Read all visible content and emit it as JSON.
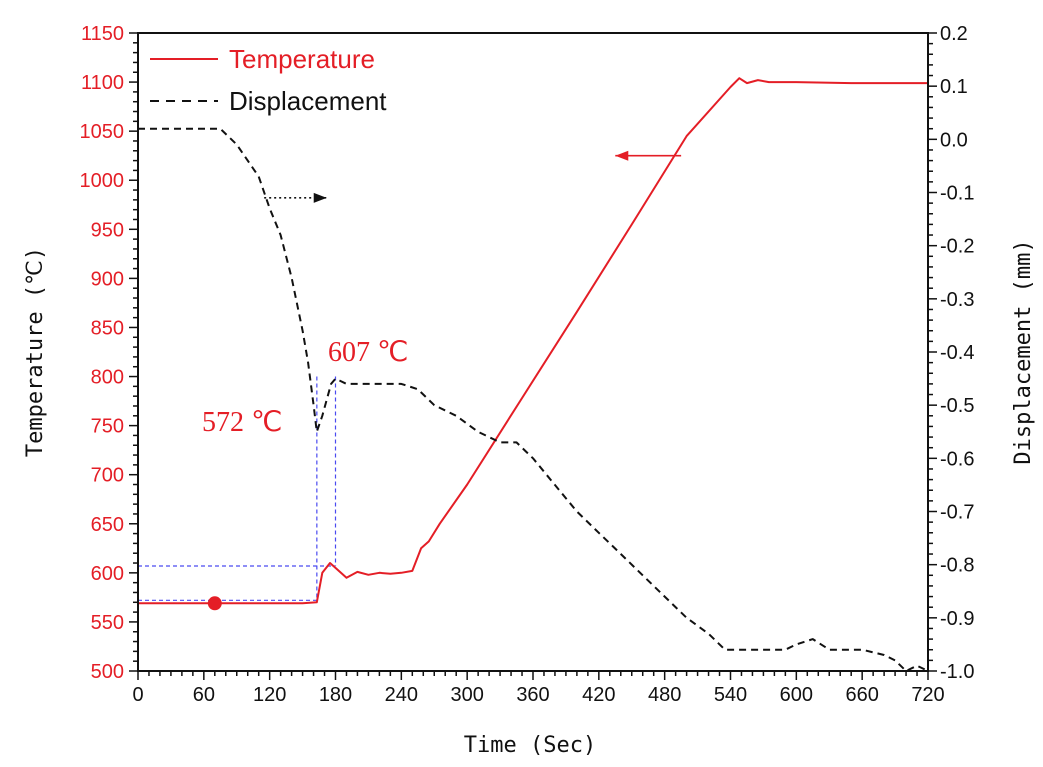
{
  "colors": {
    "temperature": "#e41e26",
    "displacement": "#111111",
    "guide": "#4a4af0",
    "axis": "#111111"
  },
  "chart_data": {
    "type": "line",
    "xlabel": "Time (Sec)",
    "ylabel": "Temperature (℃)",
    "y2label": "Displacement (mm)",
    "xlim": [
      0,
      720
    ],
    "ylim": [
      500,
      1150
    ],
    "y2lim": [
      -1.0,
      0.2
    ],
    "xticks": [
      0,
      60,
      120,
      180,
      240,
      300,
      360,
      420,
      480,
      540,
      600,
      660,
      720
    ],
    "yticks": [
      500,
      550,
      600,
      650,
      700,
      750,
      800,
      850,
      900,
      950,
      1000,
      1050,
      1100,
      1150
    ],
    "y2ticks": [
      "-1.0",
      "-0.9",
      "-0.8",
      "-0.7",
      "-0.6",
      "-0.5",
      "-0.4",
      "-0.3",
      "-0.2",
      "-0.1",
      "0.0",
      "0.1",
      "0.2"
    ],
    "legend_position": "top-left",
    "series": [
      {
        "name": "Temperature",
        "axis": "left",
        "style": "solid",
        "x": [
          0,
          60,
          120,
          150,
          163,
          168,
          175,
          180,
          190,
          200,
          210,
          220,
          230,
          240,
          250,
          258,
          265,
          275,
          300,
          350,
          400,
          450,
          500,
          540,
          548,
          555,
          565,
          575,
          600,
          650,
          700,
          720
        ],
        "y": [
          569,
          569,
          569,
          569,
          570,
          600,
          610,
          605,
          595,
          601,
          598,
          600,
          599,
          600,
          602,
          625,
          632,
          650,
          690,
          778,
          866,
          955,
          1045,
          1095,
          1104,
          1099,
          1102,
          1100,
          1100,
          1099,
          1099,
          1099
        ]
      },
      {
        "name": "Displacement",
        "axis": "right",
        "style": "dashed",
        "x": [
          0,
          30,
          60,
          75,
          90,
          100,
          110,
          120,
          130,
          140,
          150,
          155,
          160,
          163,
          168,
          172,
          176,
          180,
          190,
          200,
          220,
          240,
          255,
          270,
          290,
          310,
          330,
          345,
          360,
          380,
          400,
          420,
          440,
          460,
          480,
          500,
          520,
          535,
          545,
          555,
          570,
          590,
          600,
          615,
          630,
          660,
          680,
          690,
          700,
          710,
          720
        ],
        "y": [
          0.02,
          0.02,
          0.02,
          0.02,
          -0.01,
          -0.04,
          -0.07,
          -0.13,
          -0.18,
          -0.26,
          -0.36,
          -0.42,
          -0.5,
          -0.55,
          -0.52,
          -0.49,
          -0.46,
          -0.45,
          -0.46,
          -0.46,
          -0.46,
          -0.46,
          -0.47,
          -0.5,
          -0.52,
          -0.55,
          -0.57,
          -0.57,
          -0.6,
          -0.65,
          -0.7,
          -0.74,
          -0.78,
          -0.82,
          -0.86,
          -0.9,
          -0.93,
          -0.96,
          -0.96,
          -0.96,
          -0.96,
          -0.96,
          -0.95,
          -0.94,
          -0.96,
          -0.96,
          -0.97,
          -0.98,
          -1.0,
          -0.99,
          -1.0
        ]
      }
    ],
    "annotations": [
      {
        "text": "572 ℃",
        "x": 163,
        "y": 572
      },
      {
        "text": "607 ℃",
        "x": 180,
        "y": 607
      }
    ],
    "guides": {
      "h_levels": [
        572,
        607
      ],
      "v_times": [
        163,
        180
      ],
      "v_top": 800
    },
    "marker": {
      "x": 70,
      "y": 569
    },
    "arrows": [
      {
        "direction": "left",
        "axis": "left",
        "from_x": 495,
        "to_x": 435,
        "y": 1025
      },
      {
        "direction": "right",
        "axis": "right",
        "from_x": 115,
        "to_x": 172,
        "y": -0.11
      }
    ]
  }
}
